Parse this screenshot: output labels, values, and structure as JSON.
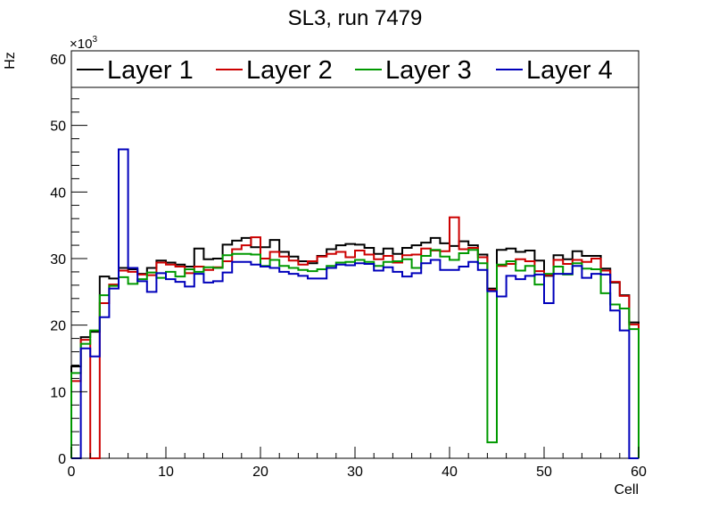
{
  "chart_data": {
    "type": "histogram-step",
    "title": "SL3, run 7479",
    "xlabel": "Cell",
    "ylabel": "Hz",
    "y_exponent_label": "×10",
    "y_exponent_power": "3",
    "xlim": [
      0,
      60
    ],
    "ylim": [
      0,
      60000
    ],
    "x_ticks": [
      0,
      10,
      20,
      30,
      40,
      50,
      60
    ],
    "y_ticks": [
      0,
      10000,
      20000,
      30000,
      40000,
      50000,
      60000
    ],
    "y_tick_labels": [
      "0",
      "10",
      "20",
      "30",
      "40",
      "50",
      "60"
    ],
    "x_tick_labels": [
      "0",
      "10",
      "20",
      "30",
      "40",
      "50",
      "60"
    ],
    "legend": {
      "position": "top",
      "entries": [
        "Layer 1",
        "Layer 2",
        "Layer 3",
        "Layer 4"
      ]
    },
    "series": [
      {
        "name": "Layer 1",
        "color": "#000000",
        "values": [
          13800,
          18200,
          19000,
          27300,
          27000,
          28600,
          28400,
          27700,
          28600,
          29700,
          29400,
          29100,
          28800,
          31500,
          29900,
          30000,
          32100,
          32700,
          33100,
          31700,
          31700,
          32800,
          31000,
          30300,
          29600,
          29300,
          30400,
          31400,
          32000,
          32200,
          32100,
          31600,
          30700,
          31500,
          30700,
          31600,
          32000,
          32400,
          33100,
          32300,
          31900,
          32600,
          32000,
          30600,
          25500,
          31300,
          31500,
          31000,
          31200,
          29700,
          27400,
          30500,
          29900,
          31100,
          30400,
          30400,
          28500,
          26400,
          24500,
          20400
        ]
      },
      {
        "name": "Layer 2",
        "color": "#cc0000",
        "values": [
          11600,
          17800,
          0,
          23300,
          26100,
          28200,
          28000,
          27600,
          27500,
          29400,
          29100,
          28800,
          27800,
          28800,
          28300,
          28700,
          29600,
          31400,
          32000,
          33200,
          30000,
          31000,
          30300,
          29700,
          29100,
          29600,
          30300,
          30700,
          31000,
          30200,
          31200,
          30600,
          29900,
          30400,
          29400,
          30500,
          30600,
          31500,
          31200,
          31100,
          36200,
          31400,
          31600,
          30200,
          25300,
          28900,
          29200,
          29900,
          29600,
          28100,
          27500,
          29800,
          29200,
          29800,
          29500,
          30000,
          28200,
          26500,
          24400,
          20100
        ]
      },
      {
        "name": "Layer 3",
        "color": "#009900",
        "values": [
          12800,
          17200,
          19200,
          24500,
          25900,
          27200,
          26200,
          26900,
          27900,
          27100,
          28000,
          27300,
          28400,
          28000,
          28700,
          28600,
          30500,
          30700,
          30700,
          30600,
          28900,
          29800,
          28900,
          28600,
          28300,
          28100,
          28400,
          28900,
          29400,
          29500,
          29800,
          29500,
          28900,
          29500,
          29600,
          29900,
          28600,
          30400,
          31300,
          30300,
          29800,
          30800,
          31300,
          29300,
          2400,
          29100,
          29600,
          28200,
          28900,
          26100,
          27700,
          28800,
          27600,
          29300,
          28500,
          28400,
          24800,
          23100,
          22500,
          19400
        ]
      },
      {
        "name": "Layer 4",
        "color": "#0000bb",
        "values": [
          0,
          16500,
          15300,
          21200,
          25500,
          46400,
          28600,
          26600,
          25000,
          27800,
          26900,
          26500,
          25800,
          27700,
          26400,
          26600,
          27900,
          29500,
          29500,
          29100,
          28800,
          28600,
          28000,
          27700,
          27400,
          27000,
          27000,
          28600,
          29100,
          29000,
          29300,
          29200,
          28200,
          28700,
          28000,
          27300,
          27800,
          29300,
          29800,
          28300,
          28300,
          28800,
          29500,
          28300,
          25100,
          24300,
          27400,
          26900,
          27400,
          27600,
          23300,
          27700,
          27700,
          28900,
          27100,
          27700,
          27600,
          22200,
          19200,
          0
        ]
      }
    ]
  }
}
